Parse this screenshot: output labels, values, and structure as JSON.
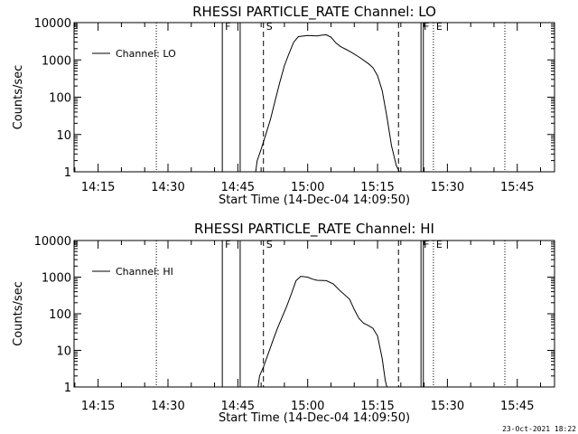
{
  "footer_date": "23-Oct-2021 18:22",
  "chart_data": [
    {
      "type": "line",
      "title": "RHESSI PARTICLE_RATE Channel: LO",
      "xlabel": "Start Time (14-Dec-04 14:09:50)",
      "ylabel": "Counts/sec",
      "yscale": "log",
      "ylim": [
        1,
        10000
      ],
      "xlim": [
        "14:09:50",
        "15:53:00"
      ],
      "x_ticks": [
        "14:15",
        "14:30",
        "14:45",
        "15:00",
        "15:15",
        "15:30",
        "15:45"
      ],
      "y_ticks": [
        "1",
        "10",
        "100",
        "1000",
        "10000"
      ],
      "legend": "top-left",
      "markers": [
        {
          "label": "F",
          "time": "14:41:40",
          "style": "solid"
        },
        {
          "label": "",
          "time": "14:45:30",
          "style": "solid"
        },
        {
          "label": "S",
          "time": "14:50:30",
          "style": "dashed"
        },
        {
          "label": "",
          "time": "15:19:30",
          "style": "dashed"
        },
        {
          "label": "F",
          "time": "15:24:20",
          "style": "solid"
        },
        {
          "label": "E",
          "time": "15:27:00",
          "style": "dotted"
        },
        {
          "label": "",
          "time": "14:27:30",
          "style": "dotted"
        },
        {
          "label": "",
          "time": "15:42:20",
          "style": "dotted"
        },
        {
          "label": "",
          "time": "15:24:50",
          "style": "solid"
        }
      ],
      "series": [
        {
          "name": "Channel: LO",
          "points": [
            [
              "14:48:50",
              1
            ],
            [
              "14:49:10",
              2
            ],
            [
              "14:50:00",
              4
            ],
            [
              "14:51:00",
              10
            ],
            [
              "14:52:00",
              25
            ],
            [
              "14:53:00",
              80
            ],
            [
              "14:54:00",
              250
            ],
            [
              "14:55:00",
              700
            ],
            [
              "14:56:00",
              1500
            ],
            [
              "14:57:00",
              3000
            ],
            [
              "14:58:00",
              4200
            ],
            [
              "15:00:00",
              4500
            ],
            [
              "15:02:00",
              4400
            ],
            [
              "15:03:00",
              4600
            ],
            [
              "15:04:00",
              4700
            ],
            [
              "15:05:00",
              4100
            ],
            [
              "15:06:00",
              2900
            ],
            [
              "15:07:00",
              2300
            ],
            [
              "15:09:00",
              1700
            ],
            [
              "15:11:00",
              1200
            ],
            [
              "15:13:00",
              800
            ],
            [
              "15:14:00",
              620
            ],
            [
              "15:15:00",
              380
            ],
            [
              "15:16:00",
              150
            ],
            [
              "15:17:00",
              30
            ],
            [
              "15:18:00",
              5
            ],
            [
              "15:19:00",
              1.5
            ],
            [
              "15:19:40",
              1
            ]
          ]
        }
      ]
    },
    {
      "type": "line",
      "title": "RHESSI PARTICLE_RATE Channel: HI",
      "xlabel": "Start Time (14-Dec-04 14:09:50)",
      "ylabel": "Counts/sec",
      "yscale": "log",
      "ylim": [
        1,
        10000
      ],
      "xlim": [
        "14:09:50",
        "15:53:00"
      ],
      "x_ticks": [
        "14:15",
        "14:30",
        "14:45",
        "15:00",
        "15:15",
        "15:30",
        "15:45"
      ],
      "y_ticks": [
        "1",
        "10",
        "100",
        "1000",
        "10000"
      ],
      "legend": "top-left",
      "markers": [
        {
          "label": "F",
          "time": "14:41:40",
          "style": "solid"
        },
        {
          "label": "",
          "time": "14:45:30",
          "style": "solid"
        },
        {
          "label": "S",
          "time": "14:50:30",
          "style": "dashed"
        },
        {
          "label": "",
          "time": "15:19:30",
          "style": "dashed"
        },
        {
          "label": "F",
          "time": "15:24:20",
          "style": "solid"
        },
        {
          "label": "E",
          "time": "15:27:00",
          "style": "dotted"
        },
        {
          "label": "",
          "time": "14:27:30",
          "style": "dotted"
        },
        {
          "label": "",
          "time": "15:42:20",
          "style": "dotted"
        },
        {
          "label": "",
          "time": "15:24:50",
          "style": "solid"
        }
      ],
      "series": [
        {
          "name": "Channel: HI",
          "points": [
            [
              "14:49:20",
              1
            ],
            [
              "14:49:40",
              2
            ],
            [
              "14:50:30",
              3.5
            ],
            [
              "14:51:30",
              8
            ],
            [
              "14:52:30",
              18
            ],
            [
              "14:53:30",
              40
            ],
            [
              "14:54:30",
              80
            ],
            [
              "14:55:30",
              160
            ],
            [
              "14:56:30",
              350
            ],
            [
              "14:57:30",
              800
            ],
            [
              "14:58:30",
              1050
            ],
            [
              "15:00:00",
              1000
            ],
            [
              "15:01:00",
              880
            ],
            [
              "15:02:00",
              820
            ],
            [
              "15:04:00",
              800
            ],
            [
              "15:05:30",
              650
            ],
            [
              "15:07:00",
              420
            ],
            [
              "15:09:00",
              250
            ],
            [
              "15:10:00",
              130
            ],
            [
              "15:11:00",
              75
            ],
            [
              "15:12:00",
              55
            ],
            [
              "15:13:00",
              48
            ],
            [
              "15:14:00",
              40
            ],
            [
              "15:15:00",
              25
            ],
            [
              "15:16:00",
              6
            ],
            [
              "15:16:40",
              1.5
            ],
            [
              "15:17:00",
              1
            ]
          ]
        }
      ]
    }
  ]
}
